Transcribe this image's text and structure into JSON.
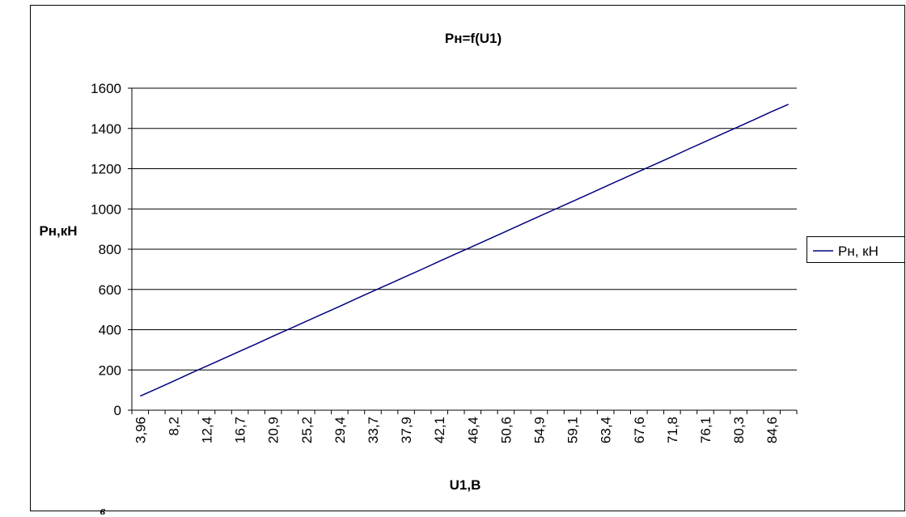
{
  "chart_data": {
    "type": "line",
    "title": "Рн=f(U1)",
    "x_label": "U1,В",
    "y_label": "Рн,кН",
    "corner_label": "в",
    "categories": [
      "3,96",
      null,
      "8,2",
      null,
      "12,4",
      null,
      "16,7",
      null,
      "20,9",
      null,
      "25,2",
      null,
      "29,4",
      null,
      "33,7",
      null,
      "37,9",
      null,
      "42,1",
      null,
      "46,4",
      null,
      "50,6",
      null,
      "54,9",
      null,
      "59,1",
      null,
      "63,4",
      null,
      "67,6",
      null,
      "71,8",
      null,
      "76,1",
      null,
      "80,3",
      null,
      "84,6",
      null
    ],
    "series": [
      {
        "name": "Рн, кН",
        "color": "#000080",
        "values": [
          70,
          107,
          144,
          182,
          219,
          256,
          293,
          330,
          368,
          405,
          442,
          479,
          516,
          554,
          591,
          628,
          665,
          702,
          740,
          777,
          814,
          851,
          888,
          926,
          963,
          1000,
          1037,
          1074,
          1112,
          1149,
          1186,
          1223,
          1260,
          1298,
          1335,
          1372,
          1409,
          1446,
          1484,
          1520
        ]
      }
    ],
    "ylim": [
      0,
      1600
    ],
    "yticks": [
      0,
      200,
      400,
      600,
      800,
      1000,
      1200,
      1400,
      1600
    ],
    "grid": true,
    "legend": "right"
  }
}
